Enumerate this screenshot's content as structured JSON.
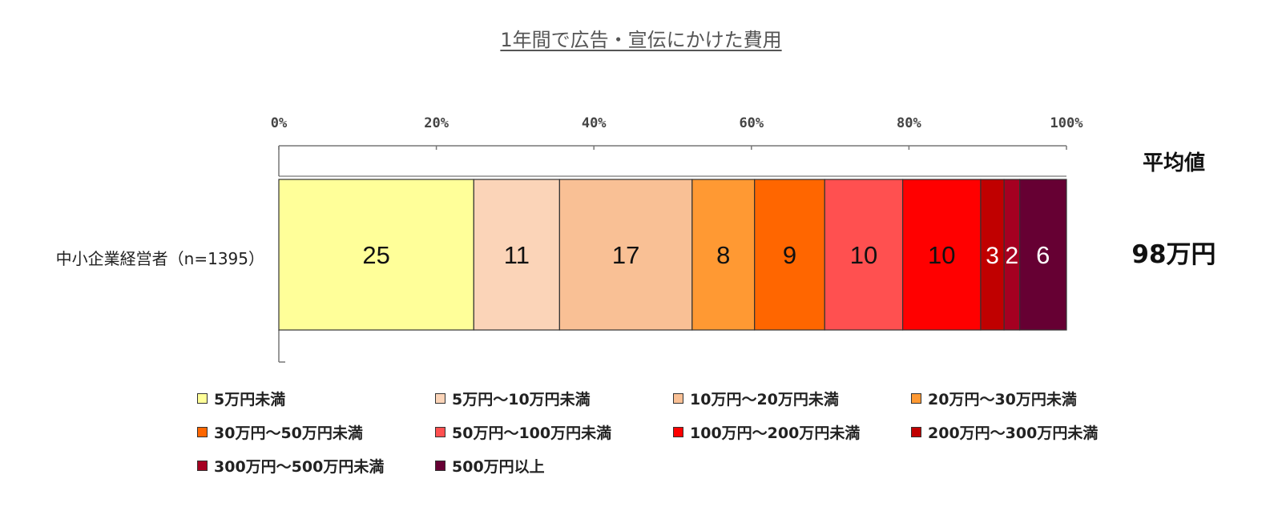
{
  "chart_data": {
    "type": "bar",
    "orientation": "horizontal",
    "stacked": true,
    "percent": true,
    "title": "1年間で広告・宣伝にかけた費用",
    "xlim": [
      0,
      100
    ],
    "x_ticks": [
      "0%",
      "20%",
      "40%",
      "60%",
      "80%",
      "100%"
    ],
    "tick_values": [
      0,
      20,
      40,
      60,
      80,
      100
    ],
    "categories": [
      "中小企業経営者（n=1395）"
    ],
    "series": [
      {
        "name": "5万円未満",
        "values": [
          25
        ],
        "color": "#FFFF99"
      },
      {
        "name": "5万円～10万円未満",
        "values": [
          11
        ],
        "color": "#FBD4B8"
      },
      {
        "name": "10万円～20万円未満",
        "values": [
          17
        ],
        "color": "#F9C095"
      },
      {
        "name": "20万円～30万円未満",
        "values": [
          8
        ],
        "color": "#FF9933"
      },
      {
        "name": "30万円～50万円未満",
        "values": [
          9
        ],
        "color": "#FF6600"
      },
      {
        "name": "50万円～100万円未満",
        "values": [
          10
        ],
        "color": "#FF5050"
      },
      {
        "name": "100万円～200万円未満",
        "values": [
          10
        ],
        "color": "#FF0000"
      },
      {
        "name": "200万円～300万円未満",
        "values": [
          3
        ],
        "color": "#C00000"
      },
      {
        "name": "300万円～500万円未満",
        "values": [
          2
        ],
        "color": "#A50021"
      },
      {
        "name": "500万円以上",
        "values": [
          6
        ],
        "color": "#660033"
      }
    ],
    "average_header": "平均値",
    "average_value": "98万円",
    "legend_position": "bottom"
  }
}
